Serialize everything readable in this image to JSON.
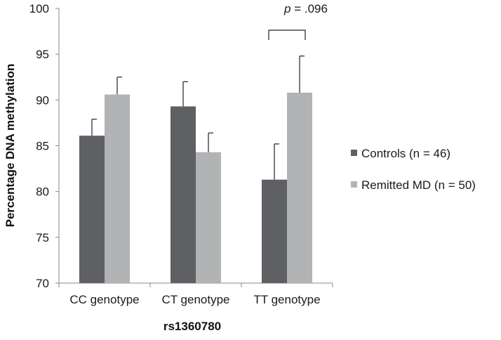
{
  "chart_data": {
    "type": "bar",
    "title": "",
    "xlabel": "rs1360780",
    "ylabel": "Percentage DNA methylation",
    "ylim": [
      70,
      100
    ],
    "yticks": [
      70,
      75,
      80,
      85,
      90,
      95,
      100
    ],
    "categories": [
      "CC genotype",
      "CT genotype",
      "TT genotype"
    ],
    "series": [
      {
        "name": "Controls (n = 46)",
        "color": "#5f6064",
        "values": [
          86.1,
          89.3,
          81.3
        ],
        "errors": [
          1.8,
          2.7,
          3.9
        ]
      },
      {
        "name": "Remitted MD (n = 50)",
        "color": "#b2b3b5",
        "values": [
          90.6,
          84.3,
          90.8
        ],
        "errors": [
          1.9,
          2.1,
          4.0
        ]
      }
    ],
    "legend_position": "right",
    "annotation": {
      "p_label": "p",
      "p_value": " = .096",
      "category": "TT genotype"
    }
  }
}
